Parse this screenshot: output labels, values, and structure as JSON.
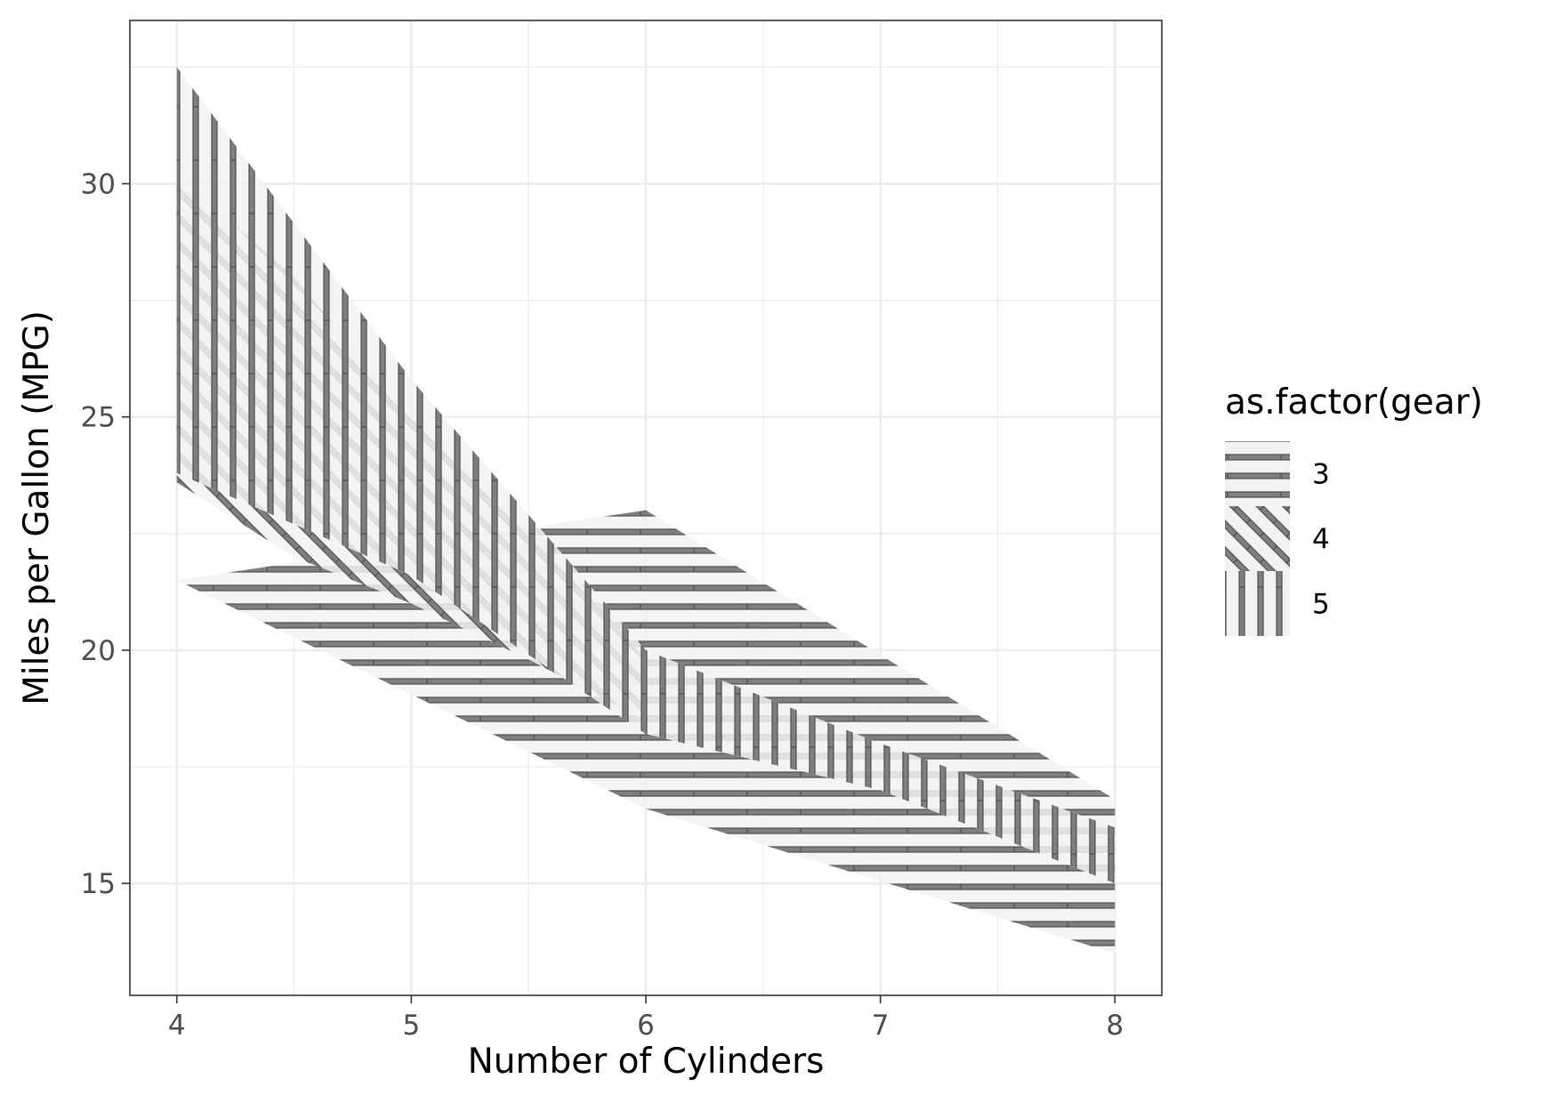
{
  "chart_data": {
    "type": "area",
    "xlabel": "Number of Cylinders",
    "ylabel": "Miles per Gallon (MPG)",
    "xlim": [
      3.8,
      8.2
    ],
    "ylim": [
      12.6,
      33.5
    ],
    "x_ticks": [
      4,
      5,
      6,
      7,
      8
    ],
    "y_ticks": [
      15,
      20,
      25,
      30
    ],
    "grid": true,
    "legend": {
      "title": "as.factor(gear)",
      "placement": "right",
      "entries": [
        "3",
        "4",
        "5"
      ]
    },
    "series": [
      {
        "name": "3",
        "pattern": "horizontal stripes",
        "x": [
          4,
          6,
          8
        ],
        "lower": [
          21.5,
          16.6,
          13.5
        ],
        "upper": [
          21.5,
          23.0,
          16.8
        ]
      },
      {
        "name": "4",
        "pattern": "diagonal stripes",
        "x": [
          4,
          4.5,
          5,
          5.5,
          6
        ],
        "lower": [
          23.6,
          22.0,
          21.0,
          19.8,
          18.5
        ],
        "upper": [
          30.2,
          28.0,
          25.0,
          22.7,
          19.8
        ]
      },
      {
        "name": "5",
        "pattern": "vertical stripes",
        "x": [
          4,
          5,
          6,
          7,
          8
        ],
        "lower": [
          23.8,
          21.6,
          18.2,
          17.0,
          15.0
        ],
        "upper": [
          32.5,
          25.8,
          20.0,
          18.0,
          16.2
        ]
      }
    ],
    "colors": {
      "ribbon_fill": "#f2f2f2",
      "stripe": "#7f7f7f",
      "stripe_outline": "#4d4d4d",
      "grid_major": "#ebebeb",
      "panel_border": "#333333"
    }
  }
}
